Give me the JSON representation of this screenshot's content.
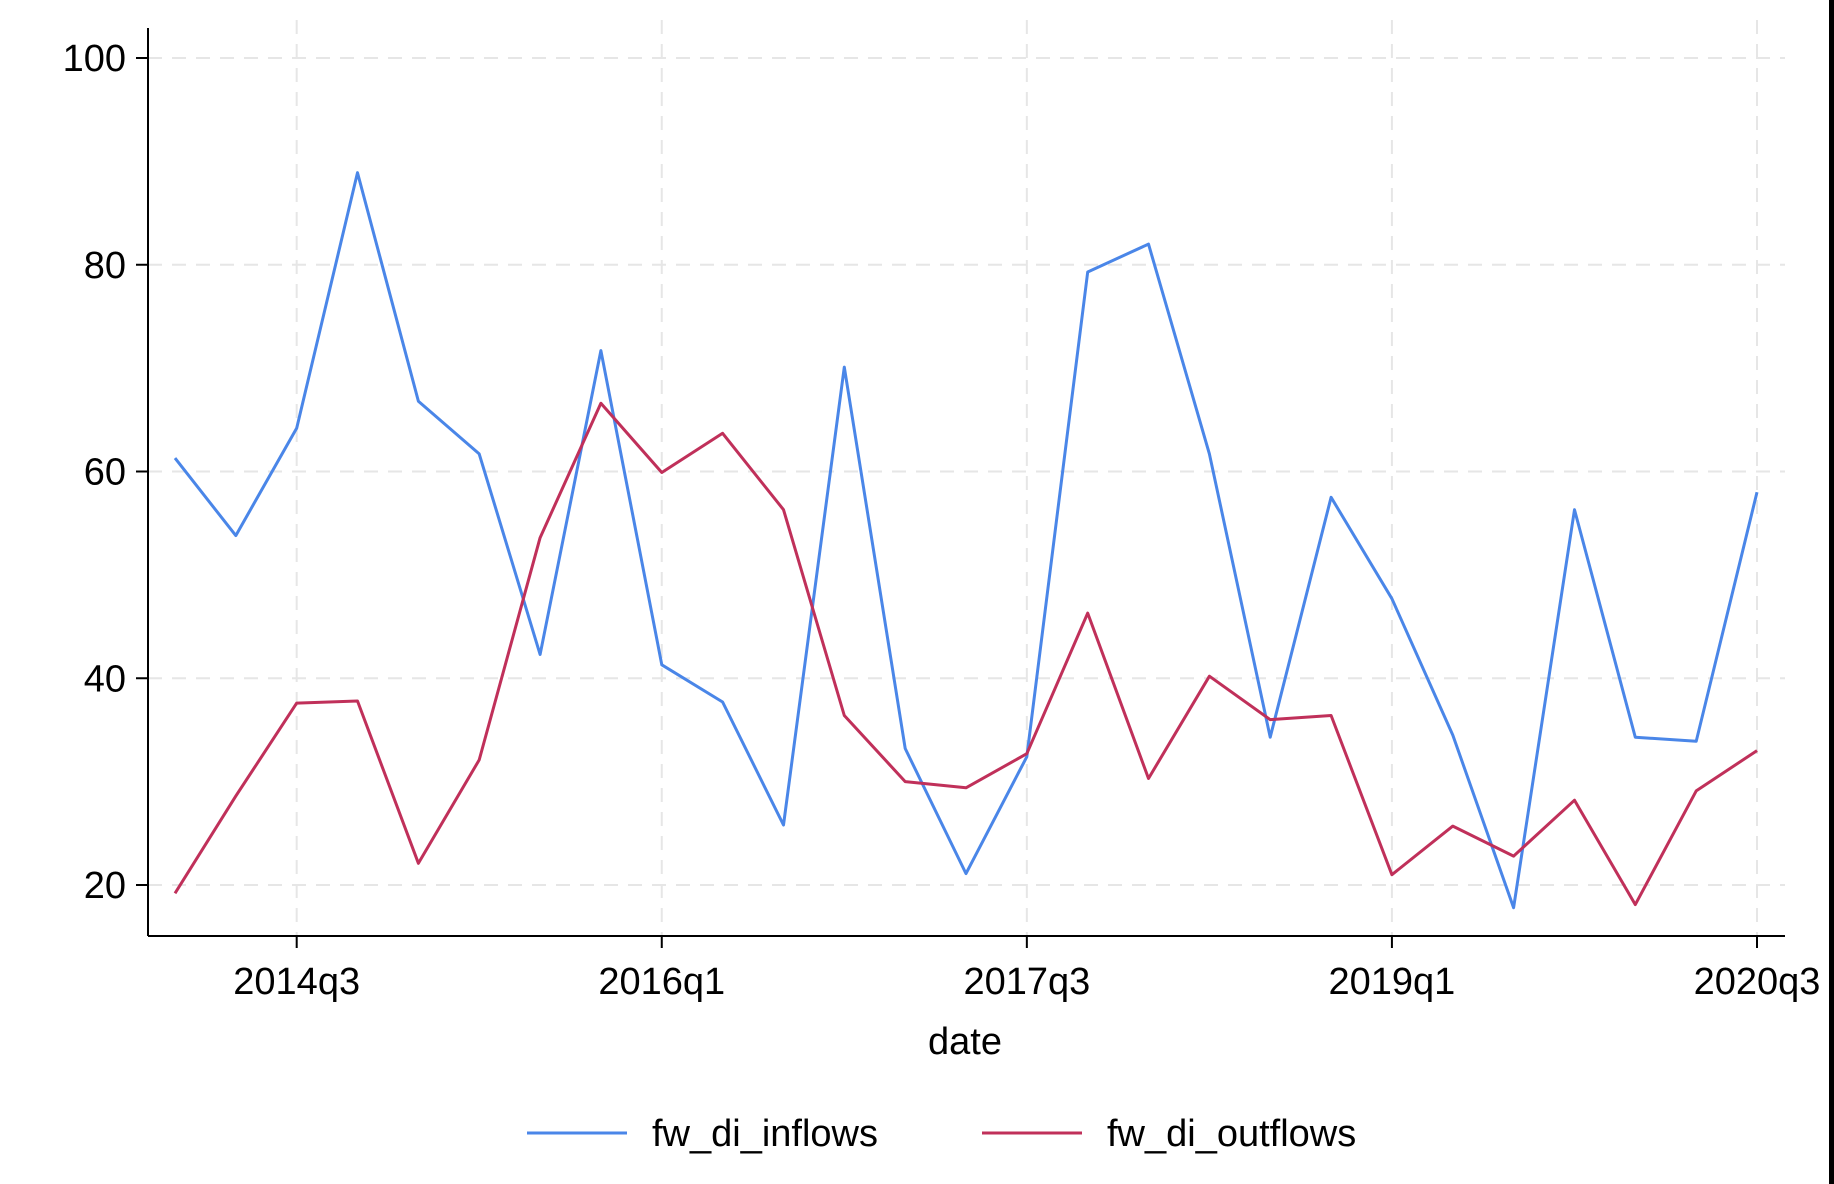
{
  "chart_data": {
    "type": "line",
    "xlabel": "date",
    "ylabel": "",
    "x_ticks": [
      "2014q3",
      "2016q1",
      "2017q3",
      "2019q1",
      "2020q3"
    ],
    "y_ticks": [
      20,
      40,
      60,
      80,
      100
    ],
    "xlim": [
      "2014q1",
      "2020q3"
    ],
    "ylim": [
      15,
      102
    ],
    "grid": true,
    "legend_position": "bottom",
    "x": [
      "2014q1",
      "2014q2",
      "2014q3",
      "2014q4",
      "2015q1",
      "2015q2",
      "2015q3",
      "2015q4",
      "2016q1",
      "2016q2",
      "2016q3",
      "2016q4",
      "2017q1",
      "2017q2",
      "2017q3",
      "2017q4",
      "2018q1",
      "2018q2",
      "2018q3",
      "2018q4",
      "2019q1",
      "2019q2",
      "2019q3",
      "2019q4",
      "2020q1",
      "2020q2",
      "2020q3"
    ],
    "series": [
      {
        "name": "fw_di_inflows",
        "color": "#4a86e8",
        "values": [
          61.3,
          53.8,
          64.2,
          88.9,
          66.8,
          61.7,
          42.3,
          71.7,
          41.3,
          37.7,
          25.8,
          70.1,
          33.2,
          21.1,
          32.4,
          79.3,
          82.0,
          61.7,
          34.3,
          57.5,
          47.7,
          34.5,
          17.8,
          56.3,
          34.3,
          33.9,
          58.0
        ]
      },
      {
        "name": "fw_di_outflows",
        "color": "#c0305a",
        "values": [
          19.2,
          28.6,
          37.6,
          37.8,
          22.1,
          32.1,
          53.6,
          66.6,
          59.9,
          63.7,
          56.3,
          36.4,
          30.0,
          29.4,
          32.7,
          46.3,
          30.3,
          40.2,
          36.0,
          36.4,
          21.0,
          25.7,
          22.8,
          28.2,
          18.1,
          29.1,
          33.0
        ]
      }
    ]
  }
}
